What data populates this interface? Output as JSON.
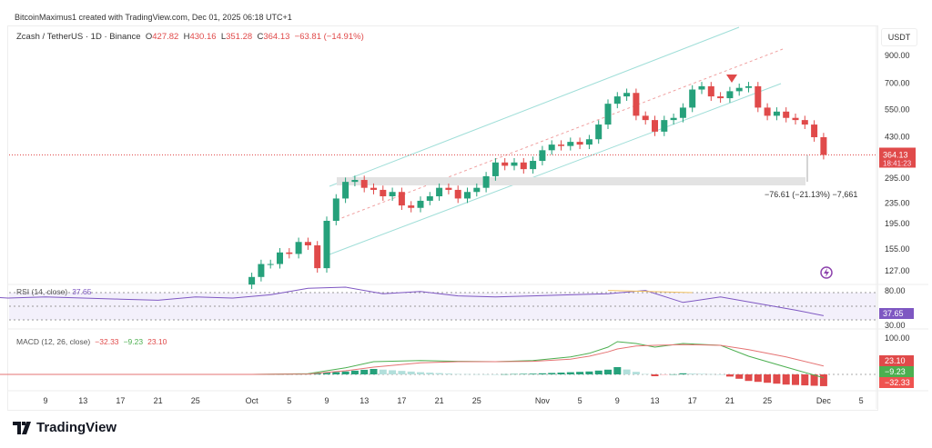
{
  "header": {
    "credit": "BitcoinMaximus1 created with TradingView.com, Dec 01, 2025 06:18 UTC+1",
    "symbol": "Zcash / TetherUS · 1D · Binance",
    "o_label": "O",
    "o": "427.82",
    "h_label": "H",
    "h": "430.16",
    "l_label": "L",
    "l": "351.28",
    "c_label": "C",
    "c": "364.13",
    "change": "−63.81 (−14.91%)"
  },
  "price_axis": {
    "currency": "USDT",
    "ticks": [
      "900.00",
      "700.00",
      "550.00",
      "430.00",
      "295.00",
      "235.00",
      "195.00",
      "155.00",
      "127.00"
    ],
    "last_price": "364.13",
    "countdown": "18:41:23"
  },
  "measure": {
    "text": "−76.61 (−21.13%) −7,661"
  },
  "rsi": {
    "label": "RSI (14, close)",
    "value": "37.65",
    "levels": [
      "80.00",
      "30.00"
    ]
  },
  "macd": {
    "label": "MACD (12, 26, close)",
    "hist": "−32.33",
    "macd": "−9.23",
    "signal": "23.10",
    "axis": "100.00"
  },
  "time_axis": {
    "ticks": [
      {
        "day": 8,
        "label": "9"
      },
      {
        "day": 12,
        "label": "13"
      },
      {
        "day": 16,
        "label": "17"
      },
      {
        "day": 20,
        "label": "21"
      },
      {
        "day": 24,
        "label": "25"
      },
      {
        "day": 30,
        "label": "Oct"
      },
      {
        "day": 34,
        "label": "5"
      },
      {
        "day": 38,
        "label": "9"
      },
      {
        "day": 42,
        "label": "13"
      },
      {
        "day": 46,
        "label": "17"
      },
      {
        "day": 50,
        "label": "21"
      },
      {
        "day": 54,
        "label": "25"
      },
      {
        "day": 61,
        "label": "Nov"
      },
      {
        "day": 65,
        "label": "5"
      },
      {
        "day": 69,
        "label": "9"
      },
      {
        "day": 73,
        "label": "13"
      },
      {
        "day": 77,
        "label": "17"
      },
      {
        "day": 81,
        "label": "21"
      },
      {
        "day": 85,
        "label": "25"
      },
      {
        "day": 91,
        "label": "Dec"
      },
      {
        "day": 95,
        "label": "5"
      }
    ]
  },
  "brand": "TradingView",
  "colors": {
    "up": "#26a17b",
    "down": "#e04a4a",
    "rsi": "#7e57c2",
    "macd": "#4caf50",
    "signal": "#e57373"
  },
  "chart_data": {
    "type": "candlestick",
    "title": "Zcash / TetherUS · 1D · Binance",
    "scale": "log",
    "ylim": [
      110,
      1000
    ],
    "start_day": 30,
    "first_open": 112,
    "closes": [
      120,
      135,
      135,
      150,
      148,
      165,
      160,
      130,
      200,
      245,
      285,
      290,
      270,
      265,
      250,
      260,
      230,
      225,
      240,
      250,
      270,
      265,
      245,
      260,
      270,
      300,
      340,
      330,
      340,
      320,
      345,
      380,
      400,
      395,
      410,
      400,
      420,
      480,
      580,
      620,
      640,
      520,
      500,
      450,
      500,
      510,
      560,
      660,
      680,
      620,
      610,
      650,
      670,
      680,
      560,
      520,
      540,
      510,
      500,
      480,
      427.82,
      364.13
    ],
    "rsi": {
      "days": [
        0,
        4,
        8,
        12,
        16,
        20,
        24,
        28,
        32,
        36,
        40,
        44,
        48,
        52,
        56,
        60,
        64,
        68,
        72,
        76,
        80,
        84,
        88,
        91
      ],
      "values": [
        74,
        70,
        72,
        70,
        68,
        66,
        72,
        70,
        76,
        88,
        90,
        78,
        82,
        74,
        72,
        74,
        76,
        78,
        84,
        62,
        72,
        60,
        48,
        37.65
      ]
    },
    "macd": {
      "days": [
        0,
        30,
        36,
        40,
        43,
        48,
        52,
        56,
        60,
        64,
        66,
        68,
        69,
        71,
        73,
        76,
        80,
        83,
        87,
        91
      ],
      "macd": [
        0,
        0,
        2,
        18,
        35,
        38,
        36,
        35,
        38,
        48,
        58,
        75,
        90,
        85,
        75,
        85,
        80,
        50,
        20,
        -9.23
      ],
      "signal": [
        0,
        0,
        1,
        10,
        20,
        32,
        35,
        35,
        36,
        42,
        50,
        62,
        70,
        78,
        80,
        82,
        80,
        68,
        48,
        23.1
      ]
    }
  }
}
